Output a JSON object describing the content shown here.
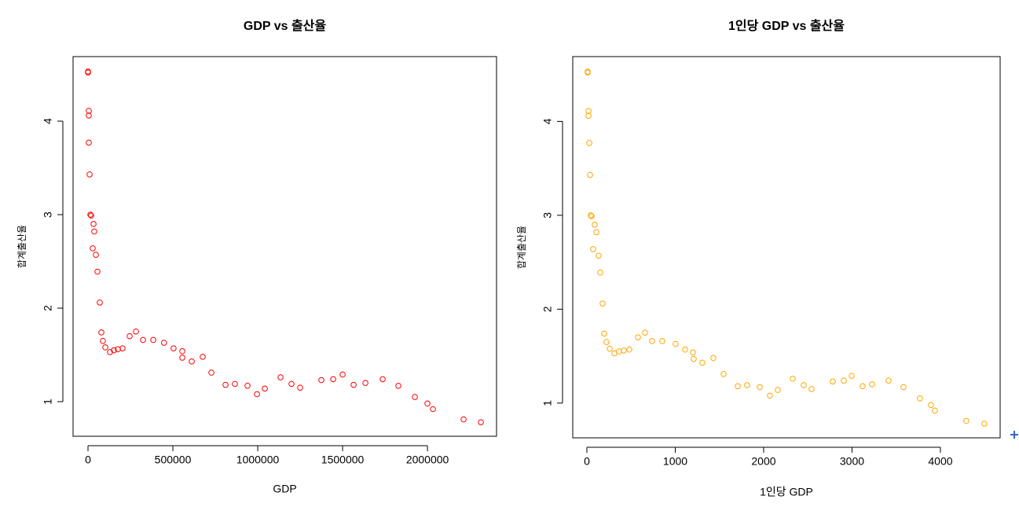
{
  "chart_data": [
    {
      "type": "scatter",
      "title": "GDP vs 출산율",
      "xlabel": "GDP",
      "ylabel": "합계출산율",
      "color": "#ff0000",
      "x": [
        0,
        0,
        4600,
        4600,
        4600,
        9300,
        14000,
        18500,
        32400,
        37000,
        27800,
        46300,
        55600,
        69400,
        78700,
        88000,
        101900,
        129600,
        152800,
        175900,
        203700,
        245400,
        282400,
        324100,
        384300,
        448000,
        504000,
        555600,
        555600,
        611100,
        675900,
        726900,
        810200,
        865700,
        939800,
        995400,
        1041700,
        1134300,
        1199100,
        1250000,
        1375000,
        1444400,
        1500000,
        1564800,
        1634300,
        1736100,
        1828700,
        1925900,
        2000000,
        2032400,
        2212900,
        2314800
      ],
      "values": [
        4.53,
        4.52,
        4.11,
        4.06,
        3.77,
        3.43,
        3.0,
        2.99,
        2.9,
        2.82,
        2.64,
        2.57,
        2.39,
        2.06,
        1.74,
        1.65,
        1.58,
        1.53,
        1.55,
        1.56,
        1.57,
        1.7,
        1.75,
        1.66,
        1.66,
        1.63,
        1.57,
        1.54,
        1.47,
        1.43,
        1.48,
        1.31,
        1.18,
        1.19,
        1.17,
        1.08,
        1.14,
        1.26,
        1.19,
        1.15,
        1.23,
        1.24,
        1.29,
        1.18,
        1.2,
        1.24,
        1.17,
        1.05,
        0.98,
        0.92,
        0.81,
        0.78
      ],
      "xlim": [
        -88000,
        2407000
      ],
      "ylim": [
        0.63,
        4.69
      ],
      "xticks": [
        0,
        500000,
        1000000,
        1500000,
        2000000
      ],
      "yticks": [
        1,
        2,
        3,
        4
      ]
    },
    {
      "type": "scatter",
      "title": "1인당 GDP vs 출산율",
      "xlabel": "1인당 GDP",
      "ylabel": "합계출산율",
      "color": "#ffa500",
      "x": [
        9,
        9,
        18,
        18,
        27,
        36,
        44,
        53,
        89,
        107,
        71,
        133,
        151,
        178,
        196,
        222,
        258,
        311,
        364,
        418,
        480,
        578,
        658,
        738,
        853,
        1004,
        1111,
        1200,
        1209,
        1307,
        1431,
        1547,
        1707,
        1813,
        1956,
        2071,
        2160,
        2329,
        2453,
        2542,
        2782,
        2907,
        2996,
        3120,
        3227,
        3413,
        3582,
        3769,
        3893,
        3938,
        4293,
        4498
      ],
      "values": [
        4.53,
        4.52,
        4.11,
        4.06,
        3.77,
        3.43,
        3.0,
        2.99,
        2.9,
        2.82,
        2.64,
        2.57,
        2.39,
        2.06,
        1.74,
        1.65,
        1.58,
        1.53,
        1.55,
        1.56,
        1.57,
        1.7,
        1.75,
        1.66,
        1.66,
        1.63,
        1.57,
        1.54,
        1.47,
        1.43,
        1.48,
        1.31,
        1.18,
        1.19,
        1.17,
        1.08,
        1.14,
        1.26,
        1.19,
        1.15,
        1.23,
        1.24,
        1.29,
        1.18,
        1.2,
        1.24,
        1.17,
        1.05,
        0.98,
        0.92,
        0.81,
        0.78
      ],
      "xlim": [
        -160,
        4676
      ],
      "ylim": [
        0.63,
        4.69
      ],
      "xticks": [
        0,
        1000,
        2000,
        3000,
        4000
      ],
      "yticks": [
        1,
        2,
        3,
        4
      ]
    }
  ]
}
